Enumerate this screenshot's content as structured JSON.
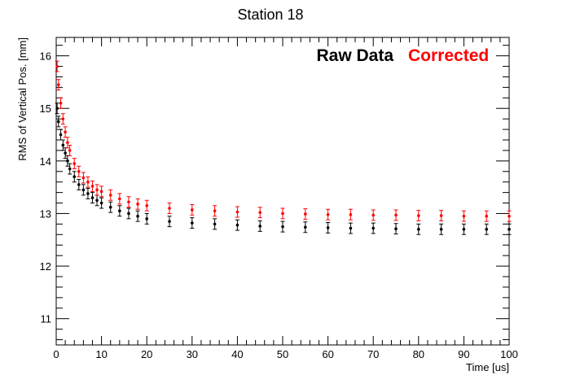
{
  "chart_data": {
    "type": "scatter",
    "title": "Station 18",
    "xlabel": "Time [us]",
    "ylabel": "RMS of Vertical Pos. [mm]",
    "xlim": [
      0,
      100
    ],
    "ylim": [
      10.5,
      16.35
    ],
    "x_ticks": [
      0,
      10,
      20,
      30,
      40,
      50,
      60,
      70,
      80,
      90,
      100
    ],
    "y_ticks": [
      11,
      12,
      13,
      14,
      15,
      16
    ],
    "grid": false,
    "legend_position": "top-right",
    "series": [
      {
        "name": "Raw Data",
        "color": "#000000",
        "x": [
          0.2,
          0.5,
          1,
          1.5,
          2,
          2.5,
          3,
          4,
          5,
          6,
          7,
          8,
          9,
          10,
          12,
          14,
          16,
          18,
          20,
          25,
          30,
          35,
          40,
          45,
          50,
          55,
          60,
          65,
          70,
          75,
          80,
          85,
          90,
          95,
          100
        ],
        "y": [
          15.0,
          14.75,
          14.5,
          14.3,
          14.15,
          14.0,
          13.85,
          13.7,
          13.55,
          13.45,
          13.38,
          13.3,
          13.25,
          13.2,
          13.12,
          13.05,
          13.0,
          12.95,
          12.9,
          12.85,
          12.82,
          12.8,
          12.78,
          12.76,
          12.75,
          12.74,
          12.73,
          12.72,
          12.72,
          12.71,
          12.7,
          12.7,
          12.7,
          12.7,
          12.7
        ],
        "error": 0.1
      },
      {
        "name": "Corrected",
        "color": "#ff0000",
        "x": [
          0.2,
          0.5,
          1,
          1.5,
          2,
          2.5,
          3,
          4,
          5,
          6,
          7,
          8,
          9,
          10,
          12,
          14,
          16,
          18,
          20,
          25,
          30,
          35,
          40,
          45,
          50,
          55,
          60,
          65,
          70,
          75,
          80,
          85,
          90,
          95,
          100
        ],
        "y": [
          15.8,
          15.45,
          15.1,
          14.8,
          14.55,
          14.35,
          14.2,
          13.95,
          13.8,
          13.68,
          13.6,
          13.52,
          13.45,
          13.42,
          13.35,
          13.28,
          13.22,
          13.18,
          13.15,
          13.1,
          13.07,
          13.05,
          13.03,
          13.02,
          13.0,
          12.99,
          12.98,
          12.98,
          12.97,
          12.97,
          12.96,
          12.96,
          12.95,
          12.95,
          12.95
        ],
        "error": 0.1
      }
    ]
  }
}
